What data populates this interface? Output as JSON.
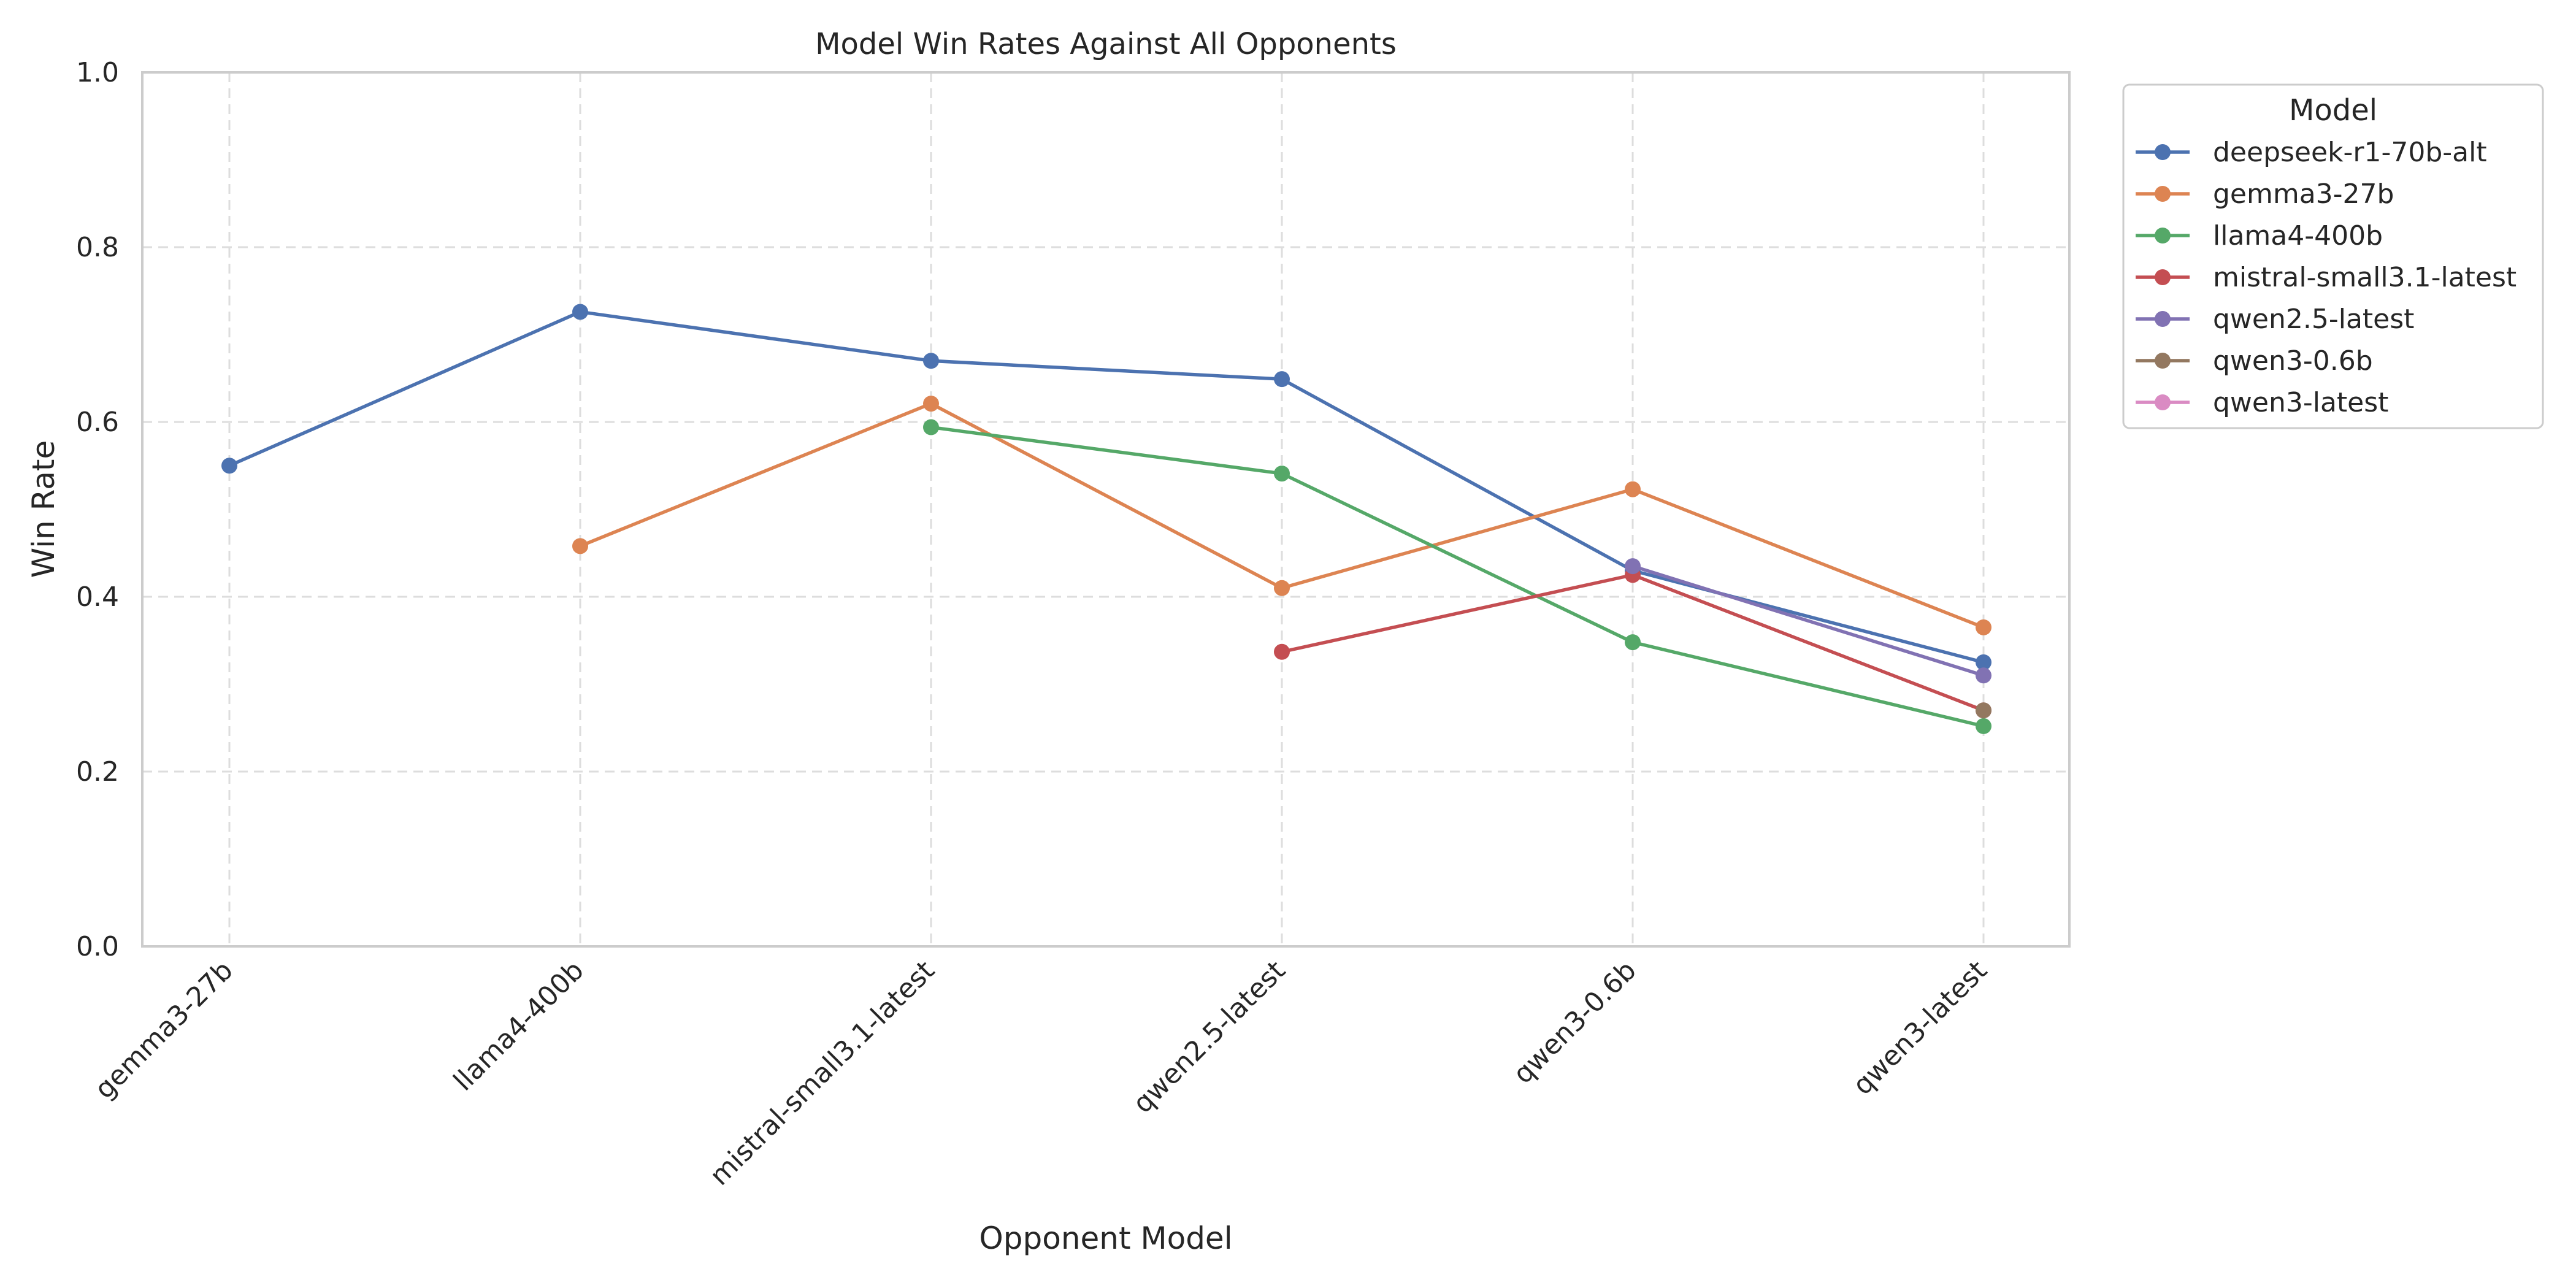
{
  "chart_data": {
    "type": "line",
    "title": "Model Win Rates Against All Opponents",
    "xlabel": "Opponent Model",
    "ylabel": "Win Rate",
    "ylim": [
      0,
      1
    ],
    "yticks": [
      "0.0",
      "0.2",
      "0.4",
      "0.6",
      "0.8",
      "1.0"
    ],
    "grid": true,
    "legend_title": "Model",
    "legend_position": "outside-right",
    "categories": [
      "gemma3-27b",
      "llama4-400b",
      "mistral-small3.1-latest",
      "qwen2.5-latest",
      "qwen3-0.6b",
      "qwen3-latest"
    ],
    "series": [
      {
        "name": "deepseek-r1-70b-alt",
        "color": "#4c72b0",
        "values": [
          0.55,
          0.726,
          0.67,
          0.649,
          0.43,
          0.325
        ]
      },
      {
        "name": "gemma3-27b",
        "color": "#dd8452",
        "values": [
          null,
          0.458,
          0.621,
          0.41,
          0.523,
          0.365
        ]
      },
      {
        "name": "llama4-400b",
        "color": "#55a868",
        "values": [
          null,
          null,
          0.594,
          0.541,
          0.348,
          0.252
        ]
      },
      {
        "name": "mistral-small3.1-latest",
        "color": "#c44e52",
        "values": [
          null,
          null,
          null,
          0.337,
          0.425,
          0.27
        ]
      },
      {
        "name": "qwen2.5-latest",
        "color": "#8172b3",
        "values": [
          null,
          null,
          null,
          null,
          0.435,
          0.31
        ]
      },
      {
        "name": "qwen3-0.6b",
        "color": "#937860",
        "values": [
          null,
          null,
          null,
          null,
          null,
          0.27
        ]
      },
      {
        "name": "qwen3-latest",
        "color": "#da8bc3",
        "values": [
          null,
          null,
          null,
          null,
          null,
          null
        ]
      }
    ]
  }
}
